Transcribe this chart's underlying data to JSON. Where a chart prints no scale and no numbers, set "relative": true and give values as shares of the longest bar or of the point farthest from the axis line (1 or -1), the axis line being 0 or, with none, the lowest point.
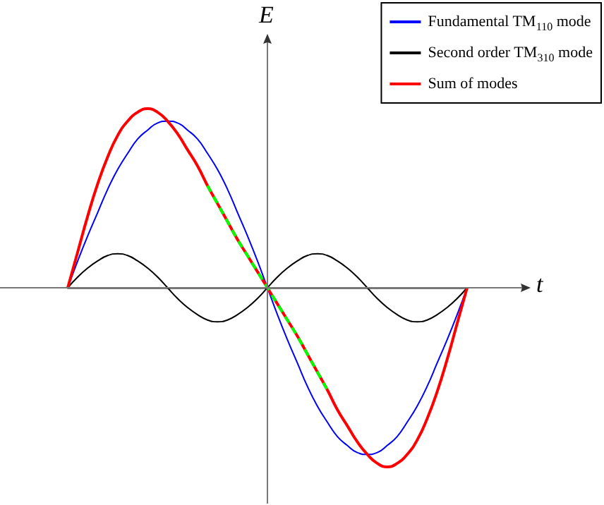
{
  "chart_data": {
    "type": "line",
    "relative": true,
    "xlabel": "t",
    "ylabel": "E",
    "legend": "top right",
    "grid": false,
    "categories": [
      null,
      null,
      null,
      null,
      null,
      null,
      null,
      null,
      null,
      null,
      null,
      null,
      null,
      null,
      null,
      null,
      null,
      null,
      null,
      null,
      null,
      null,
      null,
      null,
      null,
      null,
      null,
      null,
      null,
      null,
      null,
      null,
      null,
      null,
      null,
      null,
      null,
      null,
      null,
      null,
      null
    ],
    "series": [
      {
        "name": "Fundamental TM$_{110}$ mode",
        "color": "#0000ff",
        "values": [
          0,
          0.15,
          0.29,
          0.42,
          0.55,
          0.66,
          0.75,
          0.83,
          0.88,
          0.92,
          0.93,
          0.92,
          0.88,
          0.83,
          0.75,
          0.66,
          0.55,
          0.42,
          0.29,
          0.15,
          0,
          -0.15,
          -0.29,
          -0.42,
          -0.55,
          -0.66,
          -0.75,
          -0.83,
          -0.88,
          -0.92,
          -0.93,
          -0.92,
          -0.88,
          -0.83,
          -0.75,
          -0.66,
          -0.55,
          -0.42,
          -0.29,
          -0.15,
          0
        ]
      },
      {
        "name": "Second order TM$_{310}$ mode",
        "color": "#000000",
        "values": [
          0,
          0.06,
          0.11,
          0.15,
          0.18,
          0.19,
          0.18,
          0.15,
          0.11,
          0.06,
          0,
          -0.06,
          -0.11,
          -0.15,
          -0.18,
          -0.19,
          -0.18,
          -0.15,
          -0.11,
          -0.06,
          0,
          0.06,
          0.11,
          0.15,
          0.18,
          0.19,
          0.18,
          0.15,
          0.11,
          0.06,
          0,
          -0.06,
          -0.11,
          -0.15,
          -0.18,
          -0.19,
          -0.18,
          -0.15,
          -0.11,
          -0.06,
          0
        ]
      },
      {
        "name": "Sum of modes",
        "color": "#ff0000",
        "values": [
          0,
          0.2,
          0.4,
          0.58,
          0.73,
          0.85,
          0.93,
          0.98,
          1,
          0.98,
          0.93,
          0.86,
          0.77,
          0.68,
          0.57,
          0.47,
          0.37,
          0.27,
          0.18,
          0.09,
          0,
          -0.09,
          -0.18,
          -0.27,
          -0.37,
          -0.47,
          -0.57,
          -0.68,
          -0.77,
          -0.86,
          -0.93,
          -0.98,
          -1,
          -0.98,
          -0.93,
          -0.85,
          -0.73,
          -0.58,
          -0.4,
          -0.2,
          0
        ]
      },
      {
        "color": "#00ff00",
        "line_style": "dashed",
        "values": [
          null,
          null,
          null,
          null,
          null,
          null,
          null,
          null,
          null,
          null,
          null,
          null,
          null,
          null,
          0.57,
          0.47,
          0.37,
          0.27,
          0.18,
          0.09,
          0,
          -0.09,
          -0.18,
          -0.27,
          -0.37,
          -0.47,
          -0.57,
          null,
          null,
          null,
          null,
          null,
          null,
          null,
          null,
          null,
          null,
          null,
          null,
          null,
          null
        ]
      }
    ]
  }
}
